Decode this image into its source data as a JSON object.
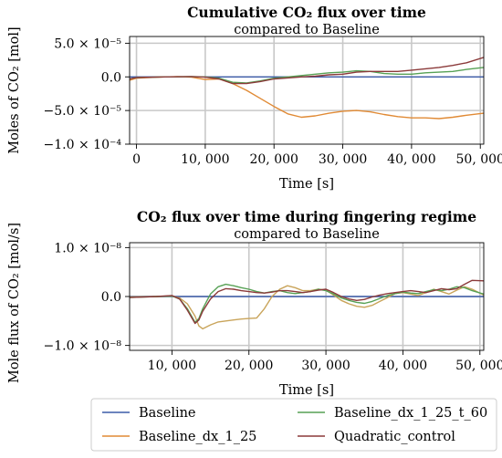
{
  "chart_data": [
    {
      "type": "line",
      "title": "Cumulative CO₂ flux over time",
      "subtitle": "compared to Baseline",
      "xlabel": "Time [s]",
      "ylabel": "Moles of CO₂ [mol]",
      "xlim": [
        -1000,
        50500
      ],
      "ylim": [
        -0.0001,
        6e-05
      ],
      "xticks": [
        0,
        10000,
        20000,
        30000,
        40000,
        50000
      ],
      "xtick_labels": [
        "0",
        "10, 000",
        "20, 000",
        "30, 000",
        "40, 000",
        "50, 000"
      ],
      "yticks": [
        5e-05,
        0.0,
        -5e-05,
        -0.0001
      ],
      "ytick_labels": [
        "5.0 × 10⁻⁵",
        "0.0",
        "−5.0 × 10⁻⁵",
        "−1.0 × 10⁻⁴"
      ],
      "grid": true,
      "series": [
        {
          "name": "Baseline",
          "color": "#3b5ba8",
          "points": [
            [
              -1000,
              0
            ],
            [
              50500,
              0
            ]
          ]
        },
        {
          "name": "Baseline_dx_1_25",
          "color": "#e08a35",
          "points": [
            [
              -1000,
              -5e-06
            ],
            [
              0,
              -2e-06
            ],
            [
              3000,
              -5e-07
            ],
            [
              6000,
              5e-07
            ],
            [
              8000,
              -5e-07
            ],
            [
              10000,
              -4e-06
            ],
            [
              12000,
              -3e-06
            ],
            [
              14000,
              -1e-05
            ],
            [
              16000,
              -2e-05
            ],
            [
              18000,
              -3.2e-05
            ],
            [
              20000,
              -4.4e-05
            ],
            [
              22000,
              -5.5e-05
            ],
            [
              24000,
              -6e-05
            ],
            [
              26000,
              -5.8e-05
            ],
            [
              28000,
              -5.4e-05
            ],
            [
              30000,
              -5.1e-05
            ],
            [
              32000,
              -5e-05
            ],
            [
              34000,
              -5.2e-05
            ],
            [
              36000,
              -5.6e-05
            ],
            [
              38000,
              -5.9e-05
            ],
            [
              40000,
              -6.1e-05
            ],
            [
              42000,
              -6.1e-05
            ],
            [
              44000,
              -6.2e-05
            ],
            [
              46000,
              -6e-05
            ],
            [
              48000,
              -5.7e-05
            ],
            [
              50500,
              -5.4e-05
            ]
          ]
        },
        {
          "name": "Baseline_dx_1_25_t_60",
          "color": "#57a155",
          "points": [
            [
              -1000,
              -3e-06
            ],
            [
              0,
              -1e-06
            ],
            [
              4000,
              0
            ],
            [
              8000,
              5e-07
            ],
            [
              10000,
              0
            ],
            [
              12000,
              -2e-06
            ],
            [
              14000,
              -8e-06
            ],
            [
              16000,
              -9e-06
            ],
            [
              18000,
              -6e-06
            ],
            [
              20000,
              -2e-06
            ],
            [
              22000,
              0
            ],
            [
              24000,
              2e-06
            ],
            [
              26000,
              4e-06
            ],
            [
              28000,
              6e-06
            ],
            [
              30000,
              7e-06
            ],
            [
              32000,
              9e-06
            ],
            [
              34000,
              8e-06
            ],
            [
              36000,
              5e-06
            ],
            [
              38000,
              4e-06
            ],
            [
              40000,
              4e-06
            ],
            [
              42000,
              6e-06
            ],
            [
              44000,
              7e-06
            ],
            [
              46000,
              8e-06
            ],
            [
              48000,
              1.1e-05
            ],
            [
              50500,
              1.4e-05
            ]
          ]
        },
        {
          "name": "Quadratic_control",
          "color": "#8b3a3a",
          "points": [
            [
              -1000,
              -3e-06
            ],
            [
              0,
              -1e-06
            ],
            [
              4000,
              0
            ],
            [
              8000,
              5e-07
            ],
            [
              10000,
              -5e-07
            ],
            [
              12000,
              -3e-06
            ],
            [
              14000,
              -1e-05
            ],
            [
              16000,
              -1e-05
            ],
            [
              18000,
              -7e-06
            ],
            [
              20000,
              -3e-06
            ],
            [
              22000,
              -1.5e-06
            ],
            [
              24000,
              0
            ],
            [
              26000,
              1e-06
            ],
            [
              28000,
              3e-06
            ],
            [
              30000,
              4e-06
            ],
            [
              32000,
              7e-06
            ],
            [
              34000,
              8e-06
            ],
            [
              36000,
              8e-06
            ],
            [
              38000,
              8e-06
            ],
            [
              40000,
              1e-05
            ],
            [
              42000,
              1.2e-05
            ],
            [
              44000,
              1.4e-05
            ],
            [
              46000,
              1.7e-05
            ],
            [
              48000,
              2.1e-05
            ],
            [
              50500,
              2.9e-05
            ]
          ]
        }
      ]
    },
    {
      "type": "line",
      "title": "CO₂ flux over time during fingering regime",
      "subtitle": "compared to Baseline",
      "xlabel": "Time [s]",
      "ylabel": "Mole flux of CO₂ [mol/s]",
      "xlim": [
        4500,
        50500
      ],
      "ylim": [
        -1.1e-08,
        1.1e-08
      ],
      "xticks": [
        10000,
        20000,
        30000,
        40000,
        50000
      ],
      "xtick_labels": [
        "10, 000",
        "20, 000",
        "30, 000",
        "40, 000",
        "50, 000"
      ],
      "yticks": [
        1e-08,
        0.0,
        -1e-08
      ],
      "ytick_labels": [
        "1.0 × 10⁻⁸",
        "0.0",
        "−1.0 × 10⁻⁸"
      ],
      "grid": true,
      "series": [
        {
          "name": "Baseline",
          "color": "#3b5ba8",
          "points": [
            [
              4500,
              0
            ],
            [
              50500,
              0
            ]
          ]
        },
        {
          "name": "Baseline_dx_1_25",
          "color": "#c9a45a",
          "points": [
            [
              4500,
              -1e-10
            ],
            [
              8000,
              0
            ],
            [
              10000,
              1e-10
            ],
            [
              11000,
              -3e-10
            ],
            [
              12000,
              -1.5e-09
            ],
            [
              13000,
              -4e-09
            ],
            [
              13500,
              -6e-09
            ],
            [
              14000,
              -6.6e-09
            ],
            [
              15000,
              -5.8e-09
            ],
            [
              16000,
              -5.2e-09
            ],
            [
              17000,
              -5e-09
            ],
            [
              18000,
              -4.8e-09
            ],
            [
              19000,
              -4.6e-09
            ],
            [
              20000,
              -4.5e-09
            ],
            [
              21000,
              -4.4e-09
            ],
            [
              22000,
              -2.5e-09
            ],
            [
              23000,
              0
            ],
            [
              24000,
              1.5e-09
            ],
            [
              25000,
              2.2e-09
            ],
            [
              26000,
              1.8e-09
            ],
            [
              27000,
              1.2e-09
            ],
            [
              28000,
              1.2e-09
            ],
            [
              29000,
              1.5e-09
            ],
            [
              30000,
              1.3e-09
            ],
            [
              31000,
              3e-10
            ],
            [
              32000,
              -8e-10
            ],
            [
              33000,
              -1.5e-09
            ],
            [
              34000,
              -2e-09
            ],
            [
              35000,
              -2.2e-09
            ],
            [
              36000,
              -1.8e-09
            ],
            [
              37000,
              -1e-09
            ],
            [
              38000,
              -2e-10
            ],
            [
              39000,
              6e-10
            ],
            [
              40000,
              8e-10
            ],
            [
              41000,
              5e-10
            ],
            [
              42000,
              2e-10
            ],
            [
              43000,
              8e-10
            ],
            [
              44000,
              1.5e-09
            ],
            [
              45000,
              1e-09
            ],
            [
              46000,
              5e-10
            ],
            [
              47000,
              1.3e-09
            ],
            [
              48000,
              2e-09
            ],
            [
              49000,
              1.5e-09
            ],
            [
              50500,
              3e-10
            ]
          ]
        },
        {
          "name": "Baseline_dx_1_25_t_60",
          "color": "#57a155",
          "points": [
            [
              4500,
              -2e-10
            ],
            [
              8000,
              0
            ],
            [
              10000,
              1e-10
            ],
            [
              11000,
              -5e-10
            ],
            [
              12000,
              -2.5e-09
            ],
            [
              13000,
              -5.3e-09
            ],
            [
              13500,
              -4.5e-09
            ],
            [
              14000,
              -2.5e-09
            ],
            [
              15000,
              5e-10
            ],
            [
              16000,
              2e-09
            ],
            [
              17000,
              2.5e-09
            ],
            [
              18000,
              2.2e-09
            ],
            [
              19000,
              1.8e-09
            ],
            [
              20000,
              1.5e-09
            ],
            [
              21000,
              1e-09
            ],
            [
              22000,
              7e-10
            ],
            [
              23000,
              1e-09
            ],
            [
              24000,
              1.2e-09
            ],
            [
              25000,
              8e-10
            ],
            [
              26000,
              6e-10
            ],
            [
              28000,
              1e-09
            ],
            [
              29000,
              1.5e-09
            ],
            [
              30000,
              1.2e-09
            ],
            [
              31000,
              5e-10
            ],
            [
              32000,
              -3e-10
            ],
            [
              33000,
              -8e-10
            ],
            [
              34000,
              -1.2e-09
            ],
            [
              35000,
              -1.4e-09
            ],
            [
              36000,
              -1e-09
            ],
            [
              37000,
              -4e-10
            ],
            [
              38000,
              2e-10
            ],
            [
              39000,
              6e-10
            ],
            [
              40000,
              9e-10
            ],
            [
              41000,
              7e-10
            ],
            [
              42000,
              6e-10
            ],
            [
              43000,
              1e-09
            ],
            [
              44000,
              1.4e-09
            ],
            [
              45000,
              1.2e-09
            ],
            [
              46000,
              1.5e-09
            ],
            [
              47000,
              2e-09
            ],
            [
              48000,
              1.8e-09
            ],
            [
              49000,
              1.2e-09
            ],
            [
              50500,
              5e-10
            ]
          ]
        },
        {
          "name": "Quadratic_control",
          "color": "#8b3a3a",
          "points": [
            [
              4500,
              -2e-10
            ],
            [
              8000,
              0
            ],
            [
              10000,
              2e-10
            ],
            [
              11000,
              -5e-10
            ],
            [
              12000,
              -2.8e-09
            ],
            [
              13000,
              -5.5e-09
            ],
            [
              13500,
              -4.8e-09
            ],
            [
              14000,
              -3e-09
            ],
            [
              15000,
              -5e-10
            ],
            [
              16000,
              1e-09
            ],
            [
              17000,
              1.6e-09
            ],
            [
              18000,
              1.5e-09
            ],
            [
              19000,
              1.2e-09
            ],
            [
              20000,
              1e-09
            ],
            [
              21000,
              8e-10
            ],
            [
              22000,
              7e-10
            ],
            [
              23000,
              9e-10
            ],
            [
              24000,
              1.2e-09
            ],
            [
              25000,
              1.2e-09
            ],
            [
              26000,
              1e-09
            ],
            [
              27000,
              8e-10
            ],
            [
              28000,
              1e-09
            ],
            [
              29000,
              1.3e-09
            ],
            [
              30000,
              1.5e-09
            ],
            [
              31000,
              8e-10
            ],
            [
              32000,
              0
            ],
            [
              33000,
              -5e-10
            ],
            [
              34000,
              -8e-10
            ],
            [
              35000,
              -6e-10
            ],
            [
              36000,
              -1e-10
            ],
            [
              37000,
              3e-10
            ],
            [
              38000,
              6e-10
            ],
            [
              39000,
              8e-10
            ],
            [
              40000,
              1e-09
            ],
            [
              41000,
              1.2e-09
            ],
            [
              42000,
              1e-09
            ],
            [
              43000,
              8e-10
            ],
            [
              44000,
              1.2e-09
            ],
            [
              45000,
              1.6e-09
            ],
            [
              46000,
              1.4e-09
            ],
            [
              47000,
              1.6e-09
            ],
            [
              48000,
              2.5e-09
            ],
            [
              49000,
              3.3e-09
            ],
            [
              50500,
              3.2e-09
            ]
          ]
        }
      ]
    }
  ],
  "legend": {
    "position": "bottom",
    "entries": [
      {
        "label": "Baseline",
        "color": "#3b5ba8"
      },
      {
        "label": "Baseline_dx_1_25",
        "color": "#e08a35"
      },
      {
        "label": "Baseline_dx_1_25_t_60",
        "color": "#57a155"
      },
      {
        "label": "Quadratic_control",
        "color": "#8b3a3a"
      }
    ]
  }
}
